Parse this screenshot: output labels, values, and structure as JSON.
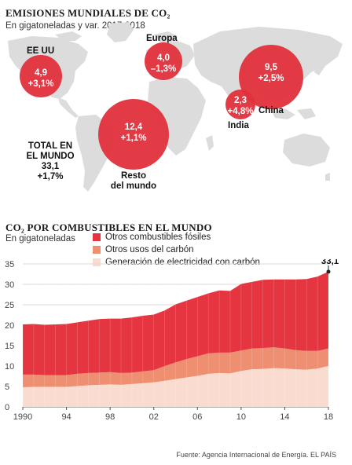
{
  "map_section": {
    "title": "EMISIONES MUNDIALES DE CO₂",
    "subtitle": "En gigatoneladas y var. 2017-2018",
    "regions": [
      {
        "name": "EE UU",
        "value": "4,9",
        "change": "+3,1%"
      },
      {
        "name": "Europa",
        "value": "4,0",
        "change": "–1,3%"
      },
      {
        "name": "China",
        "value": "9,5",
        "change": "+2,5%"
      },
      {
        "name": "India",
        "value": "2,3",
        "change": "+4,8%"
      },
      {
        "name_lines": [
          "Resto",
          "del mundo"
        ],
        "value": "12,4",
        "change": "+1,1%"
      }
    ],
    "total": {
      "lines": [
        "TOTAL EN",
        "EL MUNDO"
      ],
      "value": "33,1",
      "change": "+1,7%"
    },
    "bubble_color": "#e0303c"
  },
  "chart_section": {
    "title": "CO₂ POR COMBUSTIBLES EN EL MUNDO",
    "subtitle": "En gigatoneladas",
    "legend": [
      {
        "label": "Otros combustibles fósiles",
        "color": "#e53540"
      },
      {
        "label": "Otros usos del carbón",
        "color": "#ee8f72"
      },
      {
        "label": "Generación de electricidad  con carbón",
        "color": "#f9dccf"
      }
    ],
    "end_label": "33,1",
    "source": "Fuente: Agencia Internacional de Energía. EL PAÍS"
  },
  "chart_data": {
    "type": "area",
    "x": [
      1990,
      1991,
      1992,
      1993,
      1994,
      1995,
      1996,
      1997,
      1998,
      1999,
      2000,
      2001,
      2002,
      2003,
      2004,
      2005,
      2006,
      2007,
      2008,
      2009,
      2010,
      2011,
      2012,
      2013,
      2014,
      2015,
      2016,
      2017,
      2018
    ],
    "x_tick_labels": [
      "1990",
      "94",
      "98",
      "02",
      "06",
      "10",
      "14",
      "18"
    ],
    "x_tick_values": [
      1990,
      1994,
      1998,
      2002,
      2006,
      2010,
      2014,
      2018
    ],
    "ylim": [
      0,
      35
    ],
    "y_ticks": [
      0,
      5,
      10,
      15,
      20,
      25,
      30,
      35
    ],
    "stacked": true,
    "series": [
      {
        "name": "Generación de electricidad  con carbón",
        "values": [
          4.8,
          4.9,
          4.9,
          4.9,
          4.9,
          5.1,
          5.3,
          5.4,
          5.5,
          5.4,
          5.6,
          5.8,
          6.0,
          6.4,
          6.8,
          7.2,
          7.6,
          8.1,
          8.3,
          8.2,
          8.8,
          9.2,
          9.3,
          9.5,
          9.4,
          9.2,
          9.1,
          9.4,
          10.0
        ]
      },
      {
        "name": "Otros usos del carbón",
        "values": [
          3.1,
          3.0,
          2.9,
          2.9,
          2.9,
          3.0,
          3.0,
          3.0,
          3.0,
          2.9,
          2.8,
          2.9,
          3.0,
          3.6,
          4.1,
          4.5,
          4.8,
          5.0,
          5.0,
          5.1,
          5.0,
          5.1,
          5.1,
          5.1,
          4.9,
          4.7,
          4.6,
          4.3,
          4.3
        ]
      },
      {
        "name": "Otros combustibles fósiles",
        "values": [
          12.3,
          12.4,
          12.3,
          12.4,
          12.5,
          12.6,
          12.8,
          13.1,
          13.1,
          13.3,
          13.5,
          13.6,
          13.6,
          13.6,
          14.2,
          14.3,
          14.5,
          14.7,
          15.2,
          15.1,
          16.3,
          16.3,
          16.7,
          16.6,
          16.9,
          17.3,
          17.6,
          18.2,
          18.8
        ]
      }
    ],
    "total_2018": 33.1
  }
}
